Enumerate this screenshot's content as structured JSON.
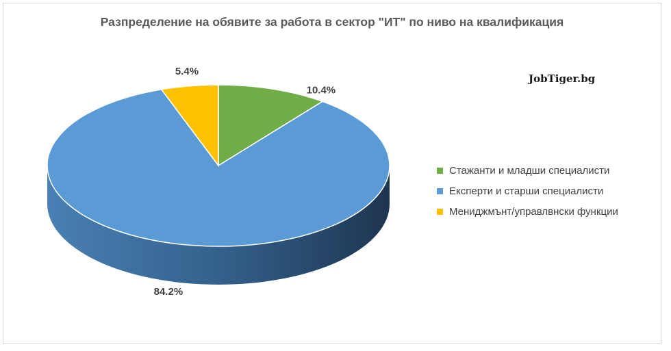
{
  "chart_data": {
    "type": "pie",
    "title": "Разпределение на обявите за работа в сектор \"ИТ\" по ниво на квалификация",
    "watermark": "JobTiger.bg",
    "legend_position": "right",
    "slices": [
      {
        "name": "Стажанти и младши специалисти",
        "value": 10.4,
        "label": "10.4%",
        "color": "#70ad47"
      },
      {
        "name": "Експерти и старши специалисти",
        "value": 84.2,
        "label": "84.2%",
        "color": "#5b9bd5"
      },
      {
        "name": "Мениджмънт/управлвнски функции",
        "value": 5.4,
        "label": "5.4%",
        "color": "#ffc000"
      }
    ]
  }
}
